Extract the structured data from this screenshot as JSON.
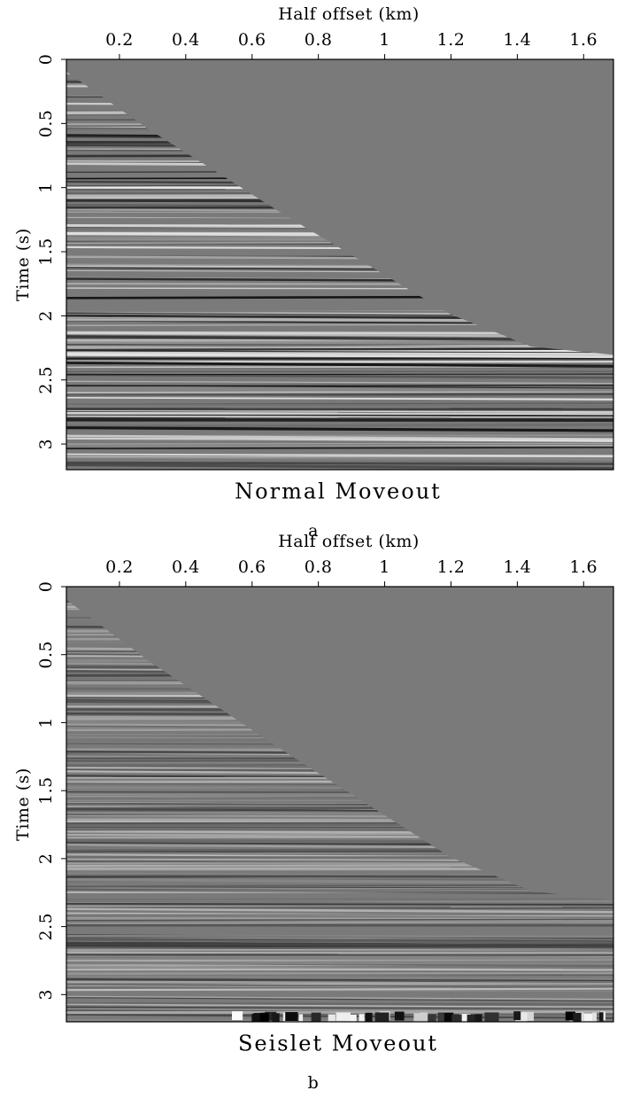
{
  "chart_data": [
    {
      "type": "raster",
      "title": "Normal Moveout",
      "caption": "a",
      "xlabel": "Half offset (km)",
      "ylabel": "Time (s)",
      "xlim": [
        0.04,
        1.69
      ],
      "ylim": [
        0,
        3.2
      ],
      "y_inverted": true,
      "xticks": [
        0.2,
        0.4,
        0.6,
        0.8,
        1,
        1.2,
        1.4,
        1.6
      ],
      "yticks": [
        0,
        0.5,
        1,
        1.5,
        2,
        2.5,
        3
      ]
    },
    {
      "type": "raster",
      "title": "Seislet Moveout",
      "caption": "b",
      "xlabel": "Half offset (km)",
      "ylabel": "Time (s)",
      "xlim": [
        0.04,
        1.69
      ],
      "ylim": [
        0,
        3.2
      ],
      "y_inverted": true,
      "xticks": [
        0.2,
        0.4,
        0.6,
        0.8,
        1,
        1.2,
        1.4,
        1.6
      ],
      "yticks": [
        0,
        0.5,
        1,
        1.5,
        2,
        2.5,
        3
      ]
    }
  ]
}
